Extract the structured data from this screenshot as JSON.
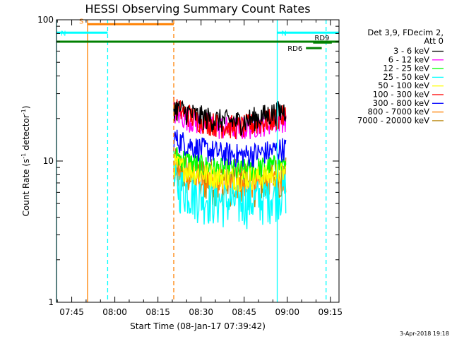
{
  "chart_data": {
    "type": "line",
    "title": "HESSI Observing Summary Count Rates",
    "xlabel": "Start Time (08-Jan-17 07:39:42)",
    "ylabel": "Count Rate (s",
    "ylabel_sup1": "-1",
    "ylabel_mid": " detector",
    "ylabel_sup2": "-1",
    "ylabel_end": ")",
    "y_scale": "log",
    "ylim": [
      1,
      100
    ],
    "xlim": [
      "07:39:42",
      "09:18:00"
    ],
    "x_ticks": [
      "07:45",
      "08:00",
      "08:15",
      "08:30",
      "08:45",
      "09:00",
      "09:15"
    ],
    "y_ticks": [
      "1",
      "10",
      "100"
    ],
    "legend_header": [
      "Det 3,9, FDecim 2,",
      "Att 0"
    ],
    "series": [
      {
        "name": "3 - 6 keV",
        "color": "#000000",
        "t": [
          "08:20:30",
          "08:59:30"
        ],
        "values": [
          24,
          21,
          19.5,
          19,
          21,
          23
        ]
      },
      {
        "name": "6 - 12 keV",
        "color": "#ff00ff",
        "t": [
          "08:20:30",
          "08:59:30"
        ],
        "values": [
          22,
          19,
          17.5,
          17,
          18.5,
          20
        ]
      },
      {
        "name": "12 - 25 keV",
        "color": "#00ff00",
        "t": [
          "08:20:30",
          "08:59:30"
        ],
        "values": [
          11,
          9.5,
          8.8,
          8.6,
          9,
          9.5
        ]
      },
      {
        "name": "25 - 50 keV",
        "color": "#00ffff",
        "t": [
          "08:20:30",
          "08:59:30"
        ],
        "values": [
          7,
          5.8,
          5.3,
          5.2,
          5.5,
          6.3
        ]
      },
      {
        "name": "50 - 100 keV",
        "color": "#ffff00",
        "t": [
          "08:20:30",
          "08:59:30"
        ],
        "values": [
          9.5,
          8.3,
          7.8,
          7.6,
          7.8,
          8.3
        ]
      },
      {
        "name": "100 - 300 keV",
        "color": "#ff0000",
        "t": [
          "08:20:30",
          "08:59:30"
        ],
        "values": [
          24,
          20,
          18,
          17.5,
          19,
          21
        ]
      },
      {
        "name": "300 - 800 keV",
        "color": "#0000ff",
        "t": [
          "08:20:30",
          "08:59:30"
        ],
        "values": [
          14.5,
          12.5,
          11.5,
          11,
          11.5,
          12.5
        ]
      },
      {
        "name": "800 - 7000 keV",
        "color": "#ff8000",
        "t": [
          "08:20:30",
          "08:59:30"
        ],
        "values": [
          8.5,
          7.2,
          6.8,
          6.6,
          6.9,
          7.3
        ]
      },
      {
        "name": "7000 - 20000 keV",
        "color": "#b8860b",
        "t": [
          "08:20:30",
          "08:59:30"
        ],
        "values": [
          9,
          8,
          7.6,
          7.5,
          7.6,
          8
        ]
      }
    ],
    "flag_bars": [
      {
        "label": "S",
        "color": "#ff8000",
        "start": "07:50:30",
        "end": "08:20:30",
        "level": 93
      },
      {
        "label": "N",
        "color": "#00ffff",
        "start": "07:39:42",
        "end": "07:57:30",
        "level": 81
      },
      {
        "label": "N",
        "color": "#00ffff",
        "start": "08:56:30",
        "end": "09:18:00",
        "level": 81
      },
      {
        "label": "",
        "color": "#008000",
        "start": "07:39:42",
        "end": "09:18:00",
        "level": 70
      },
      {
        "label": "RD6",
        "color": "#008000",
        "start": "09:06:30",
        "end": "09:12:00",
        "level": 63
      },
      {
        "label": "RD9",
        "color": "#008000",
        "start": "09:09:00",
        "end": "09:15:30",
        "level": 69
      }
    ],
    "vertical_markers": [
      {
        "t": "07:39:42",
        "color": "#00ffff",
        "style": "solid"
      },
      {
        "t": "07:50:30",
        "color": "#ff8000",
        "style": "solid"
      },
      {
        "t": "07:57:30",
        "color": "#00ffff",
        "style": "dashed"
      },
      {
        "t": "08:20:30",
        "color": "#ff8000",
        "style": "dashed"
      },
      {
        "t": "08:56:30",
        "color": "#00ffff",
        "style": "solid"
      },
      {
        "t": "09:13:30",
        "color": "#00ffff",
        "style": "dashed"
      }
    ],
    "grid": false,
    "legend_position": "right",
    "footer": "3-Apr-2018 19:18"
  }
}
